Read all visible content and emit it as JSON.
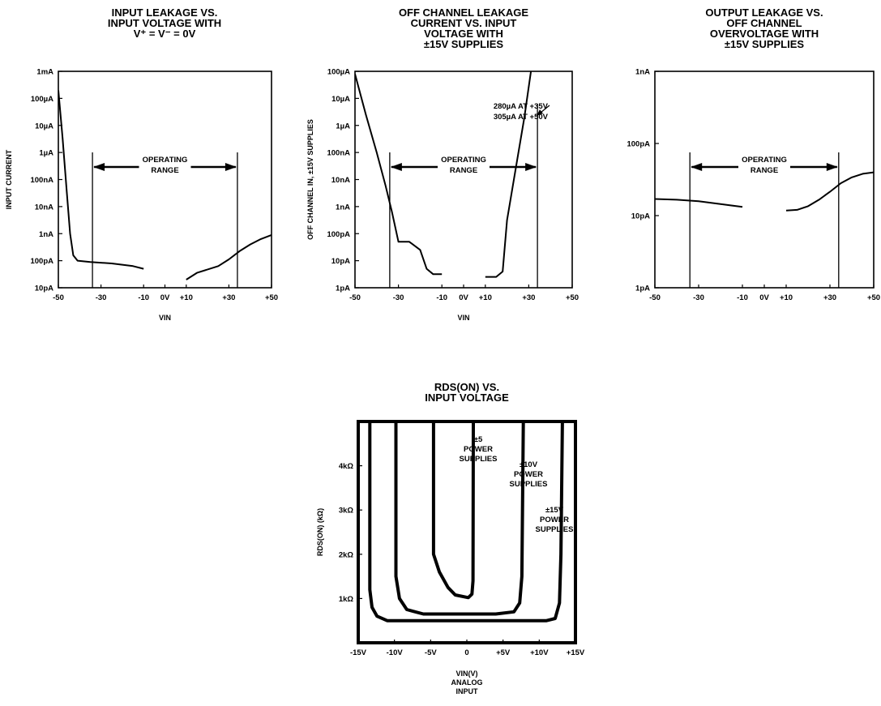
{
  "chart_data": [
    {
      "type": "line",
      "title": [
        "INPUT LEAKAGE VS.",
        "INPUT VOLTAGE WITH",
        "V⁺ = V⁻ = 0V"
      ],
      "xlabel": "VIN",
      "ylabel": "INPUT CURRENT",
      "xlim": [
        -50,
        50
      ],
      "yscale": "log",
      "ylim_decades": [
        -11,
        -3
      ],
      "x_ticks": [
        {
          "value": -50,
          "label": "-50"
        },
        {
          "value": -30,
          "label": "-30"
        },
        {
          "value": -10,
          "label": "-10"
        },
        {
          "value": 0,
          "label": "0V"
        },
        {
          "value": 10,
          "label": "+10"
        },
        {
          "value": 30,
          "label": "+30"
        },
        {
          "value": 50,
          "label": "+50"
        }
      ],
      "y_ticks": [
        {
          "value": -3,
          "label": "1mA"
        },
        {
          "value": -4,
          "label": "100µA"
        },
        {
          "value": -5,
          "label": "10µA"
        },
        {
          "value": -6,
          "label": "1µA"
        },
        {
          "value": -7,
          "label": "100nA"
        },
        {
          "value": -8,
          "label": "10nA"
        },
        {
          "value": -9,
          "label": "1nA"
        },
        {
          "value": -10,
          "label": "100pA"
        },
        {
          "value": -11,
          "label": "10pA"
        }
      ],
      "operating_range": {
        "x": [
          -34,
          34
        ],
        "label": [
          "OPERATING",
          "RANGE"
        ]
      },
      "series": [
        {
          "points": [
            [
              -50,
              -3.7
            ],
            [
              -48,
              -5.5
            ],
            [
              -46,
              -7.5
            ],
            [
              -44.5,
              -9.0
            ],
            [
              -43,
              -9.8
            ],
            [
              -41,
              -10.0
            ],
            [
              -35,
              -10.05
            ],
            [
              -25,
              -10.1
            ],
            [
              -15,
              -10.2
            ],
            [
              -10,
              -10.3
            ]
          ]
        },
        {
          "points": [
            [
              10,
              -10.7
            ],
            [
              15,
              -10.45
            ],
            [
              25,
              -10.2
            ],
            [
              30,
              -9.95
            ],
            [
              35,
              -9.65
            ],
            [
              40,
              -9.4
            ],
            [
              45,
              -9.2
            ],
            [
              50,
              -9.05
            ]
          ]
        }
      ]
    },
    {
      "type": "line",
      "title": [
        "OFF CHANNEL LEAKAGE",
        "CURRENT VS. INPUT",
        "VOLTAGE WITH",
        "±15V SUPPLIES"
      ],
      "xlabel": "VIN",
      "ylabel": "OFF CHANNEL IN, ±15V SUPPLIES",
      "xlim": [
        -50,
        50
      ],
      "yscale": "log",
      "ylim_decades": [
        -12,
        -4
      ],
      "x_ticks": [
        {
          "value": -50,
          "label": "-50"
        },
        {
          "value": -30,
          "label": "-30"
        },
        {
          "value": -10,
          "label": "-10"
        },
        {
          "value": 0,
          "label": "0V"
        },
        {
          "value": 10,
          "label": "+10"
        },
        {
          "value": 30,
          "label": "+30"
        },
        {
          "value": 50,
          "label": "+50"
        }
      ],
      "y_ticks": [
        {
          "value": -4,
          "label": "100µA"
        },
        {
          "value": -5,
          "label": "10µA"
        },
        {
          "value": -6,
          "label": "1µA"
        },
        {
          "value": -7,
          "label": "100nA"
        },
        {
          "value": -8,
          "label": "10nA"
        },
        {
          "value": -9,
          "label": "1nA"
        },
        {
          "value": -10,
          "label": "100pA"
        },
        {
          "value": -11,
          "label": "10pA"
        },
        {
          "value": -12,
          "label": "1pA"
        }
      ],
      "operating_range": {
        "x": [
          -34,
          34
        ],
        "label": [
          "OPERATING",
          "RANGE"
        ]
      },
      "annotations": [
        "280µA AT +35V",
        "305µA AT +50V"
      ],
      "series": [
        {
          "points": [
            [
              -50,
              -4.1
            ],
            [
              -45,
              -5.6
            ],
            [
              -40,
              -7.0
            ],
            [
              -36,
              -8.2
            ],
            [
              -33,
              -9.2
            ],
            [
              -30,
              -10.3
            ],
            [
              -25,
              -10.3
            ],
            [
              -20,
              -10.6
            ],
            [
              -17,
              -11.3
            ],
            [
              -14,
              -11.5
            ],
            [
              -10,
              -11.5
            ]
          ]
        },
        {
          "points": [
            [
              10,
              -11.6
            ],
            [
              15,
              -11.6
            ],
            [
              18,
              -11.4
            ],
            [
              20,
              -9.5
            ],
            [
              24,
              -7.6
            ],
            [
              28,
              -5.7
            ],
            [
              31,
              -4.0
            ]
          ]
        }
      ]
    },
    {
      "type": "line",
      "title": [
        "OUTPUT LEAKAGE VS.",
        "OFF CHANNEL",
        "OVERVOLTAGE WITH",
        "±15V SUPPLIES"
      ],
      "xlabel": "",
      "ylabel": "",
      "xlim": [
        -50,
        50
      ],
      "yscale": "log",
      "ylim_decades": [
        -12,
        -9
      ],
      "x_ticks": [
        {
          "value": -50,
          "label": "-50"
        },
        {
          "value": -30,
          "label": "-30"
        },
        {
          "value": -10,
          "label": "-10"
        },
        {
          "value": 0,
          "label": "0V"
        },
        {
          "value": 10,
          "label": "+10"
        },
        {
          "value": 30,
          "label": "+30"
        },
        {
          "value": 50,
          "label": "+50"
        }
      ],
      "y_ticks": [
        {
          "value": -9,
          "label": "1nA"
        },
        {
          "value": -10,
          "label": "100pA"
        },
        {
          "value": -11,
          "label": "10pA"
        },
        {
          "value": -12,
          "label": "1pA"
        }
      ],
      "operating_range": {
        "x": [
          -34,
          34
        ],
        "label": [
          "OPERATING",
          "RANGE"
        ]
      },
      "series": [
        {
          "points": [
            [
              -50,
              -10.77
            ],
            [
              -40,
              -10.78
            ],
            [
              -30,
              -10.8
            ],
            [
              -20,
              -10.84
            ],
            [
              -10,
              -10.88
            ]
          ]
        },
        {
          "points": [
            [
              10,
              -10.93
            ],
            [
              15,
              -10.92
            ],
            [
              20,
              -10.87
            ],
            [
              25,
              -10.78
            ],
            [
              30,
              -10.67
            ],
            [
              35,
              -10.55
            ],
            [
              40,
              -10.47
            ],
            [
              45,
              -10.42
            ],
            [
              50,
              -10.4
            ]
          ]
        }
      ]
    },
    {
      "type": "line",
      "title": [
        "RDS(ON) VS.",
        "INPUT VOLTAGE"
      ],
      "xlabel": [
        "VIN(V)",
        "ANALOG",
        "INPUT"
      ],
      "ylabel": "RDS(ON) (kΩ)",
      "xlim": [
        -15,
        15
      ],
      "ylim": [
        0,
        5
      ],
      "x_ticks": [
        {
          "value": -15,
          "label": "-15V"
        },
        {
          "value": -10,
          "label": "-10V"
        },
        {
          "value": -5,
          "label": "-5V"
        },
        {
          "value": 0,
          "label": "0"
        },
        {
          "value": 5,
          "label": "+5V"
        },
        {
          "value": 10,
          "label": "+10V"
        },
        {
          "value": 15,
          "label": "+15V"
        }
      ],
      "y_ticks": [
        {
          "value": 1,
          "label": "1kΩ"
        },
        {
          "value": 2,
          "label": "2kΩ"
        },
        {
          "value": 3,
          "label": "3kΩ"
        },
        {
          "value": 4,
          "label": "4kΩ"
        }
      ],
      "annotations": [
        {
          "lines": [
            "±5",
            "POWER",
            "SUPPLIES"
          ]
        },
        {
          "lines": [
            "±10V",
            "POWER",
            "SUPPLIES"
          ]
        },
        {
          "lines": [
            "±15V",
            "POWER",
            "SUPPLIES"
          ]
        }
      ],
      "series": [
        {
          "points": [
            [
              -13.4,
              5
            ],
            [
              -13.4,
              1.2
            ],
            [
              -13.1,
              0.8
            ],
            [
              -12.4,
              0.6
            ],
            [
              -11,
              0.5
            ],
            [
              5,
              0.5
            ],
            [
              11,
              0.5
            ],
            [
              12.2,
              0.55
            ],
            [
              12.8,
              0.9
            ],
            [
              13.0,
              2.0
            ],
            [
              13.2,
              5
            ]
          ]
        },
        {
          "points": [
            [
              -9.8,
              5
            ],
            [
              -9.8,
              1.5
            ],
            [
              -9.3,
              1.0
            ],
            [
              -8.3,
              0.75
            ],
            [
              -6,
              0.65
            ],
            [
              4,
              0.65
            ],
            [
              6.5,
              0.7
            ],
            [
              7.3,
              0.9
            ],
            [
              7.6,
              1.5
            ],
            [
              7.8,
              5
            ]
          ]
        },
        {
          "points": [
            [
              -4.6,
              5
            ],
            [
              -4.6,
              2.0
            ],
            [
              -3.8,
              1.6
            ],
            [
              -2.6,
              1.25
            ],
            [
              -1.6,
              1.08
            ],
            [
              0.2,
              1.02
            ],
            [
              0.7,
              1.1
            ],
            [
              0.85,
              1.4
            ],
            [
              0.9,
              5
            ]
          ]
        }
      ]
    }
  ]
}
